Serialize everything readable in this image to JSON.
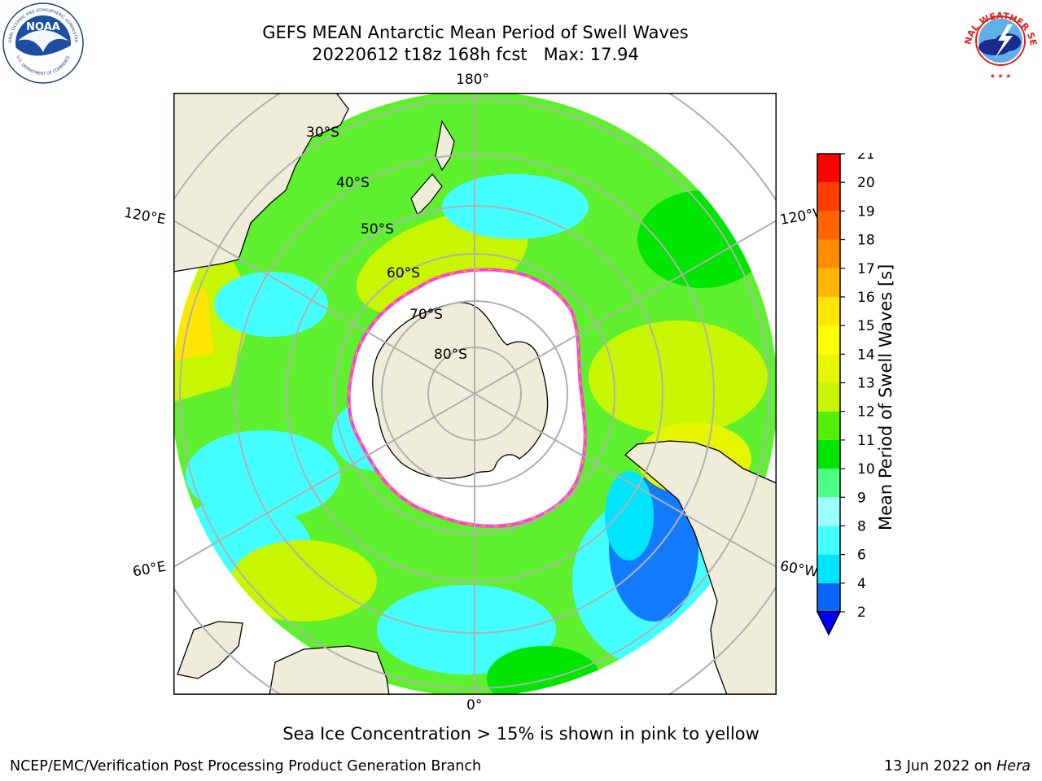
{
  "title": {
    "line1": "GEFS MEAN Antarctic Mean Period of Swell Waves",
    "line2": "20220612 t18z 168h fcst   Max: 17.94"
  },
  "map": {
    "meridian_labels": {
      "top": "180°",
      "bottom": "0°",
      "upper_left": "120°E",
      "upper_right": "120°W",
      "lower_left": "60°E",
      "lower_right": "60°W"
    },
    "parallel_labels": [
      "30°S",
      "40°S",
      "50°S",
      "60°S",
      "70°S",
      "80°S"
    ]
  },
  "colorbar": {
    "label": "Mean Period of Swell Waves [s]",
    "ticks": [
      "2",
      "4",
      "6",
      "8",
      "9",
      "10",
      "11",
      "12",
      "13",
      "14",
      "15",
      "16",
      "17",
      "18",
      "19",
      "20",
      "21"
    ],
    "colors": [
      "#0a64ff",
      "#00e5ff",
      "#44ffff",
      "#9dffff",
      "#4dff82",
      "#00e600",
      "#55f000",
      "#c8f500",
      "#e6f500",
      "#ffff00",
      "#ffe600",
      "#ffb400",
      "#ff8c00",
      "#ff6400",
      "#ff3c00",
      "#ff0000"
    ],
    "extend_color": "#0000ff"
  },
  "caption": "Sea Ice Concentration > 15% is shown in pink to yellow",
  "footer": {
    "left": "NCEP/EMC/Verification Post Processing Product Generation Branch",
    "right_prefix": "13 Jun 2022 on ",
    "right_system": "Hera"
  },
  "logos": {
    "noaa_text": "NOAA",
    "noaa_ring_top": "NATIONAL OCEANIC AND ATMOSPHERIC ADMINISTRATION",
    "noaa_ring_bottom": "U.S. DEPARTMENT OF COMMERCE",
    "nws_ring": "NATIONAL WEATHER SERVICE"
  }
}
